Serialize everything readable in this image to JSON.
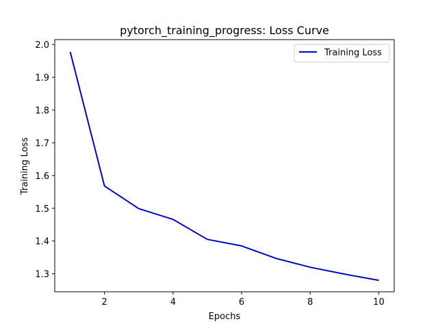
{
  "chart_data": {
    "type": "line",
    "title": "pytorch_training_progress: Loss Curve",
    "xlabel": "Epochs",
    "ylabel": "Training Loss",
    "xlim": [
      0.55,
      10.45
    ],
    "ylim": [
      1.245,
      2.015
    ],
    "xticks": [
      2,
      4,
      6,
      8,
      10
    ],
    "xtick_labels": [
      "2",
      "4",
      "6",
      "8",
      "10"
    ],
    "yticks": [
      1.3,
      1.4,
      1.5,
      1.6,
      1.7,
      1.8,
      1.9,
      2.0
    ],
    "ytick_labels": [
      "1.3",
      "1.4",
      "1.5",
      "1.6",
      "1.7",
      "1.8",
      "1.9",
      "2.0"
    ],
    "grid": false,
    "legend": {
      "placement": "top-right"
    },
    "series": [
      {
        "name": "Training Loss",
        "color": "#0000cd",
        "x": [
          1,
          2,
          3,
          4,
          5,
          6,
          7,
          8,
          9,
          10
        ],
        "y": [
          1.978,
          1.568,
          1.499,
          1.466,
          1.405,
          1.385,
          1.347,
          1.32,
          1.299,
          1.28
        ]
      }
    ]
  }
}
